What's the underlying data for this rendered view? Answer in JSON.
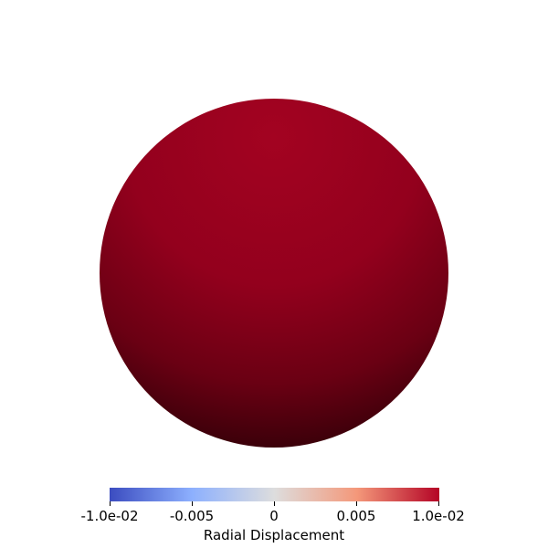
{
  "scene": {
    "object": "sphere",
    "field_color": "#a00021",
    "background": "#ffffff"
  },
  "colorbar": {
    "title": "Radial Displacement",
    "range": [
      -0.01,
      0.01
    ],
    "colormap": "cool-to-warm",
    "colors": [
      "#3b4cc0",
      "#8db0fe",
      "#dddddd",
      "#f4987a",
      "#b40426"
    ],
    "ticks": [
      {
        "value": -0.01,
        "label": "-1.0e-02"
      },
      {
        "value": -0.005,
        "label": "-0.005"
      },
      {
        "value": 0,
        "label": "0"
      },
      {
        "value": 0.005,
        "label": "0.005"
      },
      {
        "value": 0.01,
        "label": "1.0e-02"
      }
    ]
  }
}
